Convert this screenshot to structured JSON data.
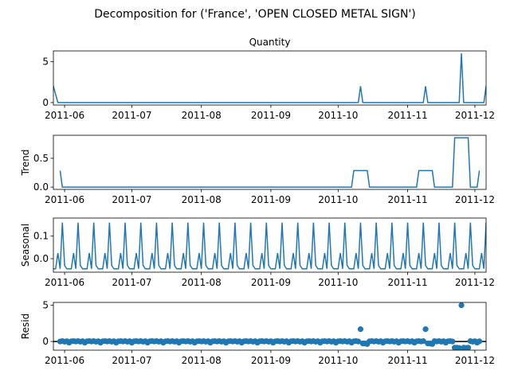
{
  "figure": {
    "suptitle": "Decomposition for ('France', 'OPEN CLOSED METAL SIGN')"
  },
  "chart_data": [
    {
      "type": "line",
      "title": "Quantity",
      "ylabel": "",
      "xlim": [
        "2011-05-27",
        "2011-12-06"
      ],
      "ylim": [
        -0.3,
        6.3
      ],
      "yticks": [
        0,
        5
      ],
      "xticks": [
        "2011-06",
        "2011-07",
        "2011-08",
        "2011-09",
        "2011-10",
        "2011-11",
        "2011-12"
      ],
      "points": [
        [
          "2011-05-27",
          2
        ],
        [
          "2011-05-29",
          0
        ],
        [
          "2011-10-10",
          0
        ],
        [
          "2011-10-11",
          2
        ],
        [
          "2011-10-12",
          0
        ],
        [
          "2011-11-08",
          0
        ],
        [
          "2011-11-09",
          2
        ],
        [
          "2011-11-10",
          0
        ],
        [
          "2011-11-24",
          0
        ],
        [
          "2011-11-25",
          6
        ],
        [
          "2011-11-26",
          0
        ],
        [
          "2011-12-05",
          0
        ],
        [
          "2011-12-06",
          2
        ]
      ]
    },
    {
      "type": "line",
      "title": "",
      "ylabel": "Trend",
      "xlim": [
        "2011-05-27",
        "2011-12-06"
      ],
      "ylim": [
        -0.04,
        0.9
      ],
      "yticks": [
        0.0,
        0.5
      ],
      "xticks": [
        "2011-06",
        "2011-07",
        "2011-08",
        "2011-09",
        "2011-10",
        "2011-11",
        "2011-12"
      ],
      "points": [
        [
          "2011-05-30",
          0.286
        ],
        [
          "2011-05-31",
          0
        ],
        [
          "2011-10-07",
          0
        ],
        [
          "2011-10-08",
          0.286
        ],
        [
          "2011-10-14",
          0.286
        ],
        [
          "2011-10-15",
          0
        ],
        [
          "2011-11-05",
          0
        ],
        [
          "2011-11-06",
          0.286
        ],
        [
          "2011-11-12",
          0.286
        ],
        [
          "2011-11-13",
          0
        ],
        [
          "2011-11-21",
          0
        ],
        [
          "2011-11-22",
          0.857
        ],
        [
          "2011-11-28",
          0.857
        ],
        [
          "2011-11-29",
          0
        ],
        [
          "2011-12-02",
          0
        ],
        [
          "2011-12-03",
          0.286
        ]
      ]
    },
    {
      "type": "line",
      "title": "",
      "ylabel": "Seasonal",
      "xlim": [
        "2011-05-27",
        "2011-12-06"
      ],
      "ylim": [
        -0.06,
        0.18
      ],
      "yticks": [
        0.0,
        0.1
      ],
      "xticks": [
        "2011-06",
        "2011-07",
        "2011-08",
        "2011-09",
        "2011-10",
        "2011-11",
        "2011-12"
      ],
      "period_days": 7,
      "pattern_start": "2011-05-27",
      "pattern": [
        -0.045,
        -0.045,
        0.025,
        -0.045,
        0.16,
        -0.03,
        -0.045
      ]
    },
    {
      "type": "scatter",
      "title": "",
      "ylabel": "Resid",
      "xlim": [
        "2011-05-27",
        "2011-12-06"
      ],
      "ylim": [
        -1.2,
        5.4
      ],
      "yticks": [
        0,
        5
      ],
      "xticks": [
        "2011-06",
        "2011-07",
        "2011-08",
        "2011-09",
        "2011-10",
        "2011-11",
        "2011-12"
      ],
      "zero_line": true,
      "baseline_range": [
        "2011-05-30",
        "2011-12-03"
      ],
      "baseline_pattern": [
        0.0,
        0.05,
        -0.03,
        0.04,
        -0.16,
        0.03,
        0.05
      ],
      "points": [
        [
          "2011-10-11",
          1.7
        ],
        [
          "2011-10-12",
          -0.28
        ],
        [
          "2011-10-13",
          -0.28
        ],
        [
          "2011-10-14",
          -0.35
        ],
        [
          "2011-11-09",
          1.7
        ],
        [
          "2011-11-10",
          -0.28
        ],
        [
          "2011-11-11",
          -0.28
        ],
        [
          "2011-11-12",
          -0.35
        ],
        [
          "2011-11-22",
          -0.85
        ],
        [
          "2011-11-23",
          -0.85
        ],
        [
          "2011-11-24",
          -0.9
        ],
        [
          "2011-11-25",
          5.0
        ],
        [
          "2011-11-26",
          -0.85
        ],
        [
          "2011-11-27",
          -0.9
        ],
        [
          "2011-11-28",
          -0.85
        ]
      ]
    }
  ]
}
